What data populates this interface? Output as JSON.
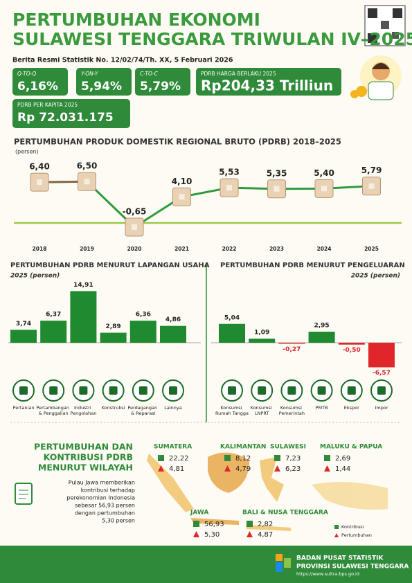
{
  "header": {
    "title_line1": "PERTUMBUHAN EKONOMI",
    "title_line2": "SULAWESI TENGGARA TRIWULAN IV–2025",
    "release": "Berita Resmi Statistik No. 12/02/74/Th. XX, 5 Februari 2026"
  },
  "stats": [
    {
      "label": "Q-TO-Q",
      "value": "6,16%"
    },
    {
      "label": "Y-ON-Y",
      "value": "5,94%"
    },
    {
      "label": "C-TO-C",
      "value": "5,79%"
    },
    {
      "label": "PDRB HARGA BERLAKU 2025",
      "value": "Rp204,33 Trilliun"
    },
    {
      "label": "PDRB PER KAPITA 2025",
      "value": "Rp 72.031.175"
    }
  ],
  "chart_data": [
    {
      "type": "line",
      "title": "PERTUMBUHAN PRODUK DOMESTIK REGIONAL BRUTO (PDRB) 2018–2025",
      "subtitle": "(persen)",
      "categories": [
        "2018",
        "2019",
        "2020",
        "2021",
        "2022",
        "2023",
        "2024",
        "2025"
      ],
      "values": [
        6.4,
        6.5,
        -0.65,
        4.1,
        5.53,
        5.35,
        5.4,
        5.79
      ],
      "value_labels": [
        "6,40",
        "6,50",
        "-0,65",
        "4,10",
        "5,53",
        "5,35",
        "5,40",
        "5,79"
      ],
      "color": "#2f9a3e"
    },
    {
      "type": "bar",
      "title": "PERTUMBUHAN PDRB MENURUT LAPANGAN USAHA",
      "subtitle": "2025 (persen)",
      "categories": [
        "Pertanian",
        "Pertambangan & Penggalian",
        "Industri Pengolahan",
        "Konstruksi",
        "Perdagangan & Reparasi",
        "Lainnya"
      ],
      "values": [
        3.74,
        6.37,
        14.91,
        2.89,
        6.36,
        4.86
      ],
      "value_labels": [
        "3,74",
        "6,37",
        "14,91",
        "2,89",
        "6,36",
        "4,86"
      ],
      "color": "#1f8a2f",
      "negative_color": "#e0262b"
    },
    {
      "type": "bar",
      "title": "PERTUMBUHAN PDRB MENURUT PENGELUARAN",
      "subtitle": "2025 (persen)",
      "categories": [
        "Konsumsi Rumah Tangga",
        "Konsumsi LNPRT",
        "Konsumsi Pemerintah",
        "PMTB",
        "Ekspor",
        "Impor"
      ],
      "values": [
        5.04,
        1.09,
        -0.27,
        2.95,
        -0.5,
        -6.57
      ],
      "value_labels": [
        "5,04",
        "1,09",
        "-0,27",
        "2,95",
        "-0,50",
        "-6,57"
      ],
      "color": "#1f8a2f",
      "negative_color": "#e0262b"
    }
  ],
  "regions": {
    "title_line1": "PERTUMBUHAN DAN",
    "title_line2": "KONTRIBUSI PDRB",
    "title_line3": "MENURUT WILAYAH",
    "note": [
      "Pulau Jawa memberikan",
      "kontribusi terhadap",
      "perekonomian Indonesia",
      "sebesar 56,93 persen",
      "dengan pertumbuhan",
      "5,30 persen"
    ],
    "items": [
      {
        "name": "SUMATERA",
        "kontribusi": "22,22",
        "pertumbuhan": "4,81"
      },
      {
        "name": "KALIMANTAN",
        "kontribusi": "8,12",
        "pertumbuhan": "4,79"
      },
      {
        "name": "SULAWESI",
        "kontribusi": "7,23",
        "pertumbuhan": "6,23"
      },
      {
        "name": "MALUKU & PAPUA",
        "kontribusi": "2,69",
        "pertumbuhan": "1,44"
      },
      {
        "name": "JAWA",
        "kontribusi": "56,93",
        "pertumbuhan": "5,30"
      },
      {
        "name": "BALI & NUSA TENGGARA",
        "kontribusi": "2,82",
        "pertumbuhan": "4,87"
      }
    ],
    "legend": [
      "Kontribusi",
      "Pertumbuhan"
    ]
  },
  "footer": {
    "line1": "BADAN PUSAT STATISTIK",
    "line2": "PROVINSI SULAWESI TENGGARA",
    "url": "https://www.sultra.bps.go.id"
  }
}
